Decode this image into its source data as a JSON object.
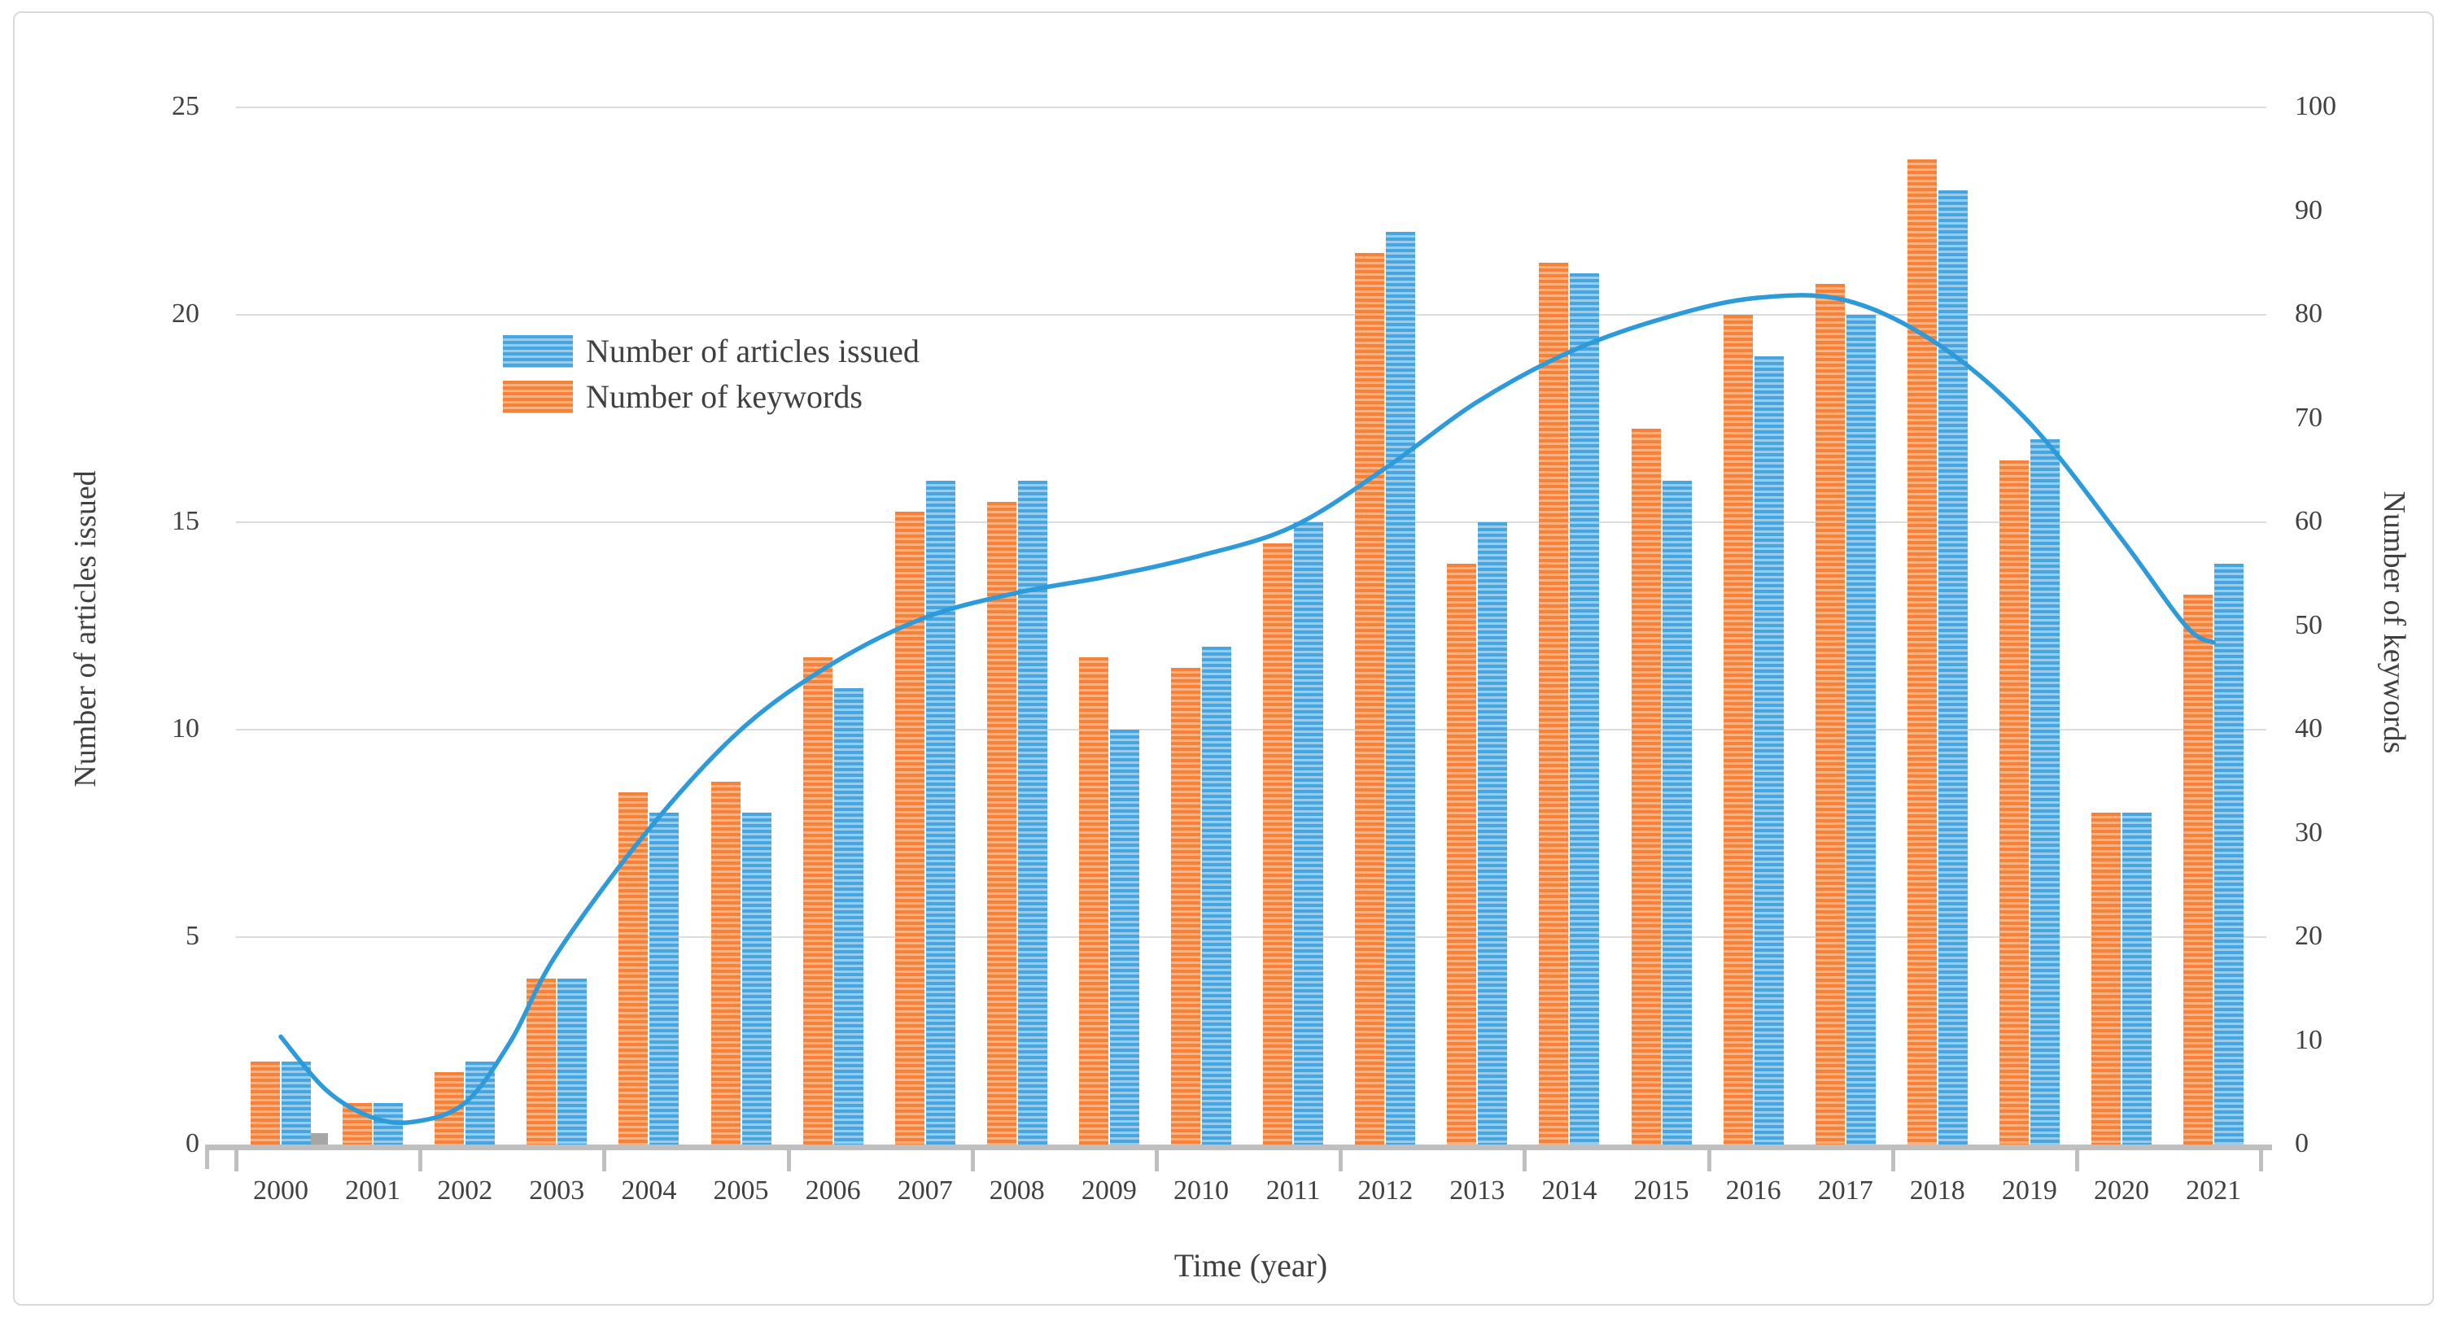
{
  "chart_data": {
    "type": "bar",
    "subtype": "dual-axis grouped bars with smooth trend line",
    "categories": [
      "2000",
      "2001",
      "2002",
      "2003",
      "2004",
      "2005",
      "2006",
      "2007",
      "2008",
      "2009",
      "2010",
      "2011",
      "2012",
      "2013",
      "2014",
      "2015",
      "2016",
      "2017",
      "2018",
      "2019",
      "2020",
      "2021"
    ],
    "series": [
      {
        "name": "Number of articles issued",
        "axis": "left",
        "color": "#49a5dd",
        "stripe_color": "#96cdee",
        "values": [
          2,
          1,
          2,
          4,
          8,
          8,
          11,
          16,
          16,
          10,
          12,
          15,
          22,
          15,
          21,
          16,
          19,
          20,
          23,
          17,
          8,
          14
        ]
      },
      {
        "name": "Number of keywords",
        "axis": "right",
        "color": "#f5823a",
        "stripe_color": "#fbb07e",
        "values": [
          8,
          4,
          7,
          16,
          34,
          35,
          47,
          61,
          62,
          47,
          46,
          58,
          86,
          56,
          85,
          69,
          80,
          83,
          95,
          66,
          32,
          53
        ]
      }
    ],
    "extra_bar": {
      "category": "2000",
      "axis": "left",
      "value": 0.27,
      "color": "#a6a6a6"
    },
    "trend_line": {
      "axis": "left",
      "color": "#2d9bd9",
      "width": 5.5,
      "points": [
        [
          2000,
          2.6
        ],
        [
          2000.5,
          1.3
        ],
        [
          2001,
          0.65
        ],
        [
          2001.45,
          0.55
        ],
        [
          2002,
          1.0
        ],
        [
          2002.5,
          2.5
        ],
        [
          2003,
          4.6
        ],
        [
          2004,
          7.6
        ],
        [
          2005,
          10.0
        ],
        [
          2006,
          11.6
        ],
        [
          2007,
          12.7
        ],
        [
          2008,
          13.3
        ],
        [
          2009,
          13.7
        ],
        [
          2010,
          14.2
        ],
        [
          2011,
          14.9
        ],
        [
          2012,
          16.3
        ],
        [
          2013,
          17.9
        ],
        [
          2014,
          19.1
        ],
        [
          2015,
          19.9
        ],
        [
          2016,
          20.4
        ],
        [
          2017,
          20.35
        ],
        [
          2018,
          19.3
        ],
        [
          2019,
          17.4
        ],
        [
          2020,
          14.6
        ],
        [
          2020.7,
          12.5
        ],
        [
          2021,
          12.1
        ]
      ]
    },
    "xlabel": "Time (year)",
    "ylabel_left": "Number of articles issued",
    "ylabel_right": "Number of keywords",
    "ylim_left": [
      0,
      25
    ],
    "left_tick_step": 5,
    "ylim_right": [
      0,
      100
    ],
    "right_tick_step": 10,
    "left_ticks": [
      "0",
      "5",
      "10",
      "15",
      "20",
      "25"
    ],
    "right_ticks": [
      "0",
      "10",
      "20",
      "30",
      "40",
      "50",
      "60",
      "70",
      "80",
      "90",
      "100"
    ],
    "grid": "horizontal gridlines at left-axis steps of 5",
    "legend_position": "upper-left inside plot",
    "gridline_color": "#dcdcdc",
    "axis_line_color": "#bfbfbf",
    "text_color": "#404040",
    "background_color": "#ffffff",
    "border_color": "#d9d9d9"
  }
}
